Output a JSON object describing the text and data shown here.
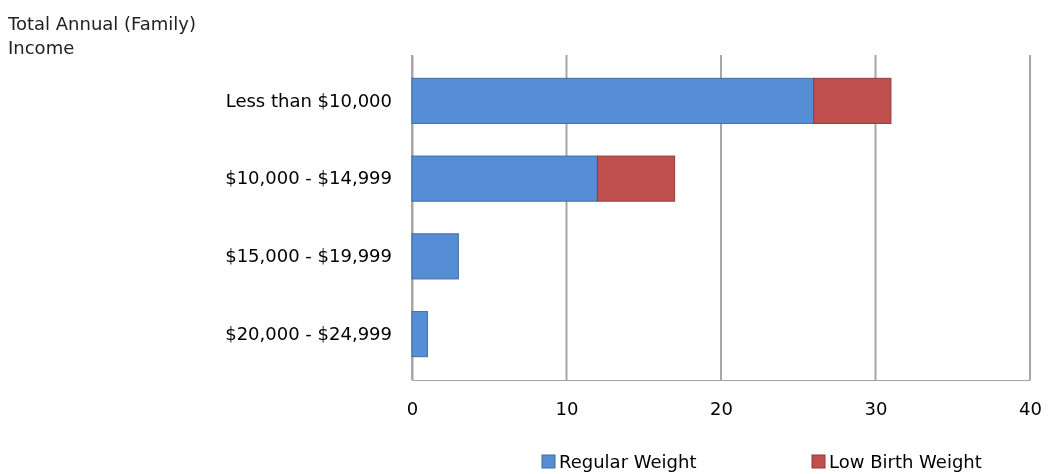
{
  "chart_data": {
    "type": "bar",
    "orientation": "horizontal",
    "stacked": true,
    "ylabel": "Total Annual (Family) Income",
    "categories": [
      "Less than $10,000",
      "$10,000 - $14,999",
      "$15,000 - $19,999",
      "$20,000 - $24,999"
    ],
    "series": [
      {
        "name": "Regular Weight",
        "color": "#558ed5",
        "values": [
          26,
          12,
          3,
          1
        ]
      },
      {
        "name": "Low Birth Weight",
        "color": "#c0504d",
        "values": [
          5,
          5,
          0,
          0
        ]
      }
    ],
    "xlim": [
      0,
      40
    ],
    "xticks": [
      0,
      10,
      20,
      30,
      40
    ],
    "grid": "x",
    "legend": "bottom right"
  }
}
